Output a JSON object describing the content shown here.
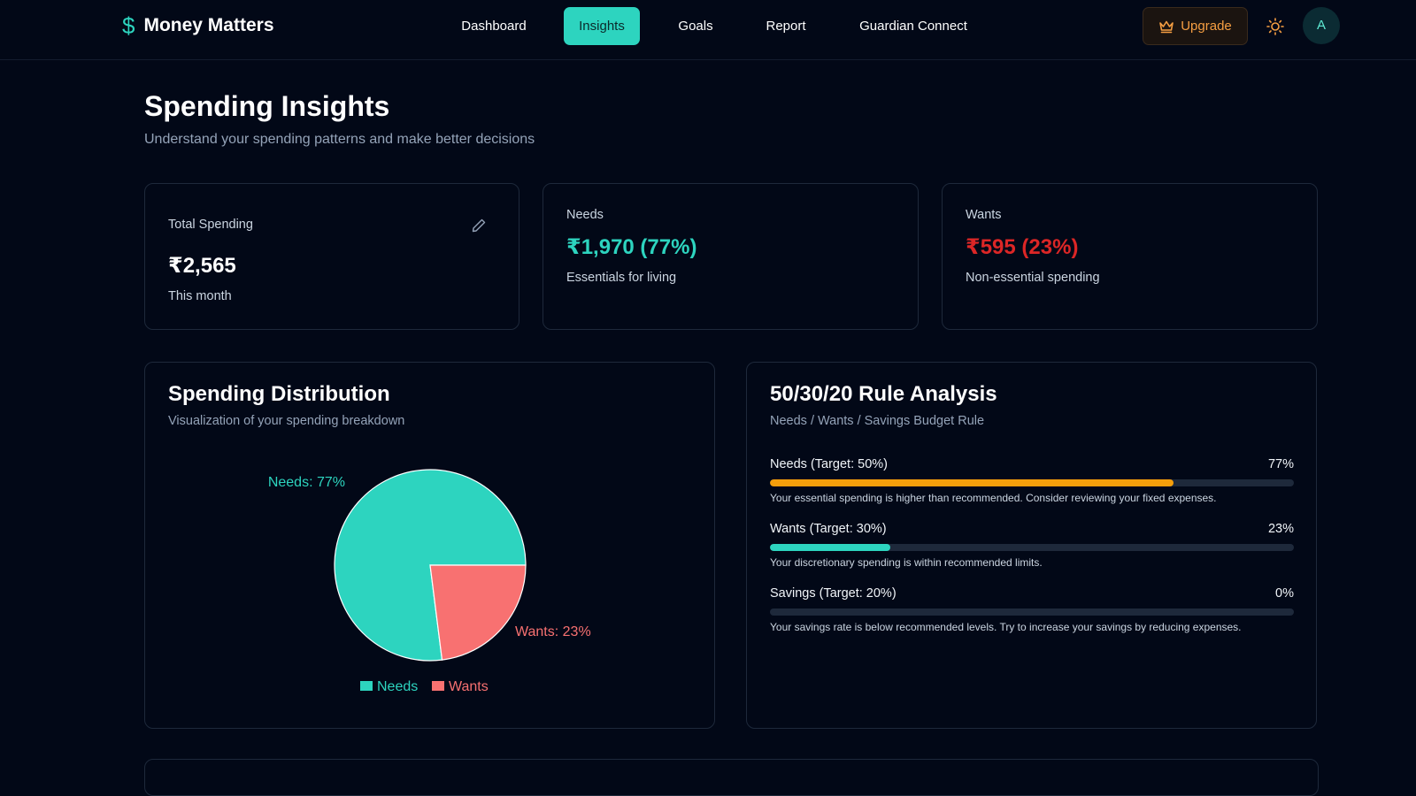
{
  "nav": {
    "brand_icon": "$",
    "brand_name": "Money Matters",
    "tabs": [
      {
        "label": "Dashboard",
        "active": false
      },
      {
        "label": "Insights",
        "active": true
      },
      {
        "label": "Goals",
        "active": false
      },
      {
        "label": "Report",
        "active": false
      },
      {
        "label": "Guardian Connect",
        "active": false
      }
    ],
    "upgrade_label": "Upgrade",
    "upgrade_icon": "crown-icon",
    "theme_icon": "sun-icon",
    "avatar_initial": "A"
  },
  "header": {
    "title": "Spending Insights",
    "subtitle": "Understand your spending patterns and make better decisions"
  },
  "stats": {
    "total": {
      "label": "Total Spending",
      "value": "₹2,565",
      "note": "This month",
      "icon": "pencil-icon"
    },
    "needs": {
      "label": "Needs",
      "value": "₹1,970 (77%)",
      "note": "Essentials for living"
    },
    "wants": {
      "label": "Wants",
      "value": "₹595 (23%)",
      "note": "Non-essential spending"
    }
  },
  "distribution": {
    "title": "Spending Distribution",
    "subtitle": "Visualization of your spending breakdown"
  },
  "chart_data": {
    "type": "pie",
    "categories": [
      "Needs",
      "Wants"
    ],
    "values": [
      77,
      23
    ],
    "colors": [
      "#2dd4bf",
      "#f87171"
    ],
    "slice_labels": [
      "Needs: 77%",
      "Wants: 23%"
    ],
    "legend": [
      "Needs",
      "Wants"
    ],
    "legend_placement": "bottom"
  },
  "rule": {
    "title": "50/30/20 Rule Analysis",
    "subtitle": "Needs / Wants / Savings Budget Rule",
    "rows": [
      {
        "label": "Needs (Target: 50%)",
        "percent_label": "77%",
        "value": 77,
        "color": "#f59e0b",
        "note": "Your essential spending is higher than recommended. Consider reviewing your fixed expenses."
      },
      {
        "label": "Wants (Target: 30%)",
        "percent_label": "23%",
        "value": 23,
        "color": "#2dd4bf",
        "note": "Your discretionary spending is within recommended limits."
      },
      {
        "label": "Savings (Target: 20%)",
        "percent_label": "0%",
        "value": 0,
        "color": "#2dd4bf",
        "note": "Your savings rate is below recommended levels. Try to increase your savings by reducing expenses."
      }
    ]
  },
  "colors": {
    "accent": "#2dd4bf",
    "needs": "#2dd4bf",
    "wants": "#f87171",
    "wants_value": "#dc2626",
    "upgrade": "#f59e42"
  }
}
